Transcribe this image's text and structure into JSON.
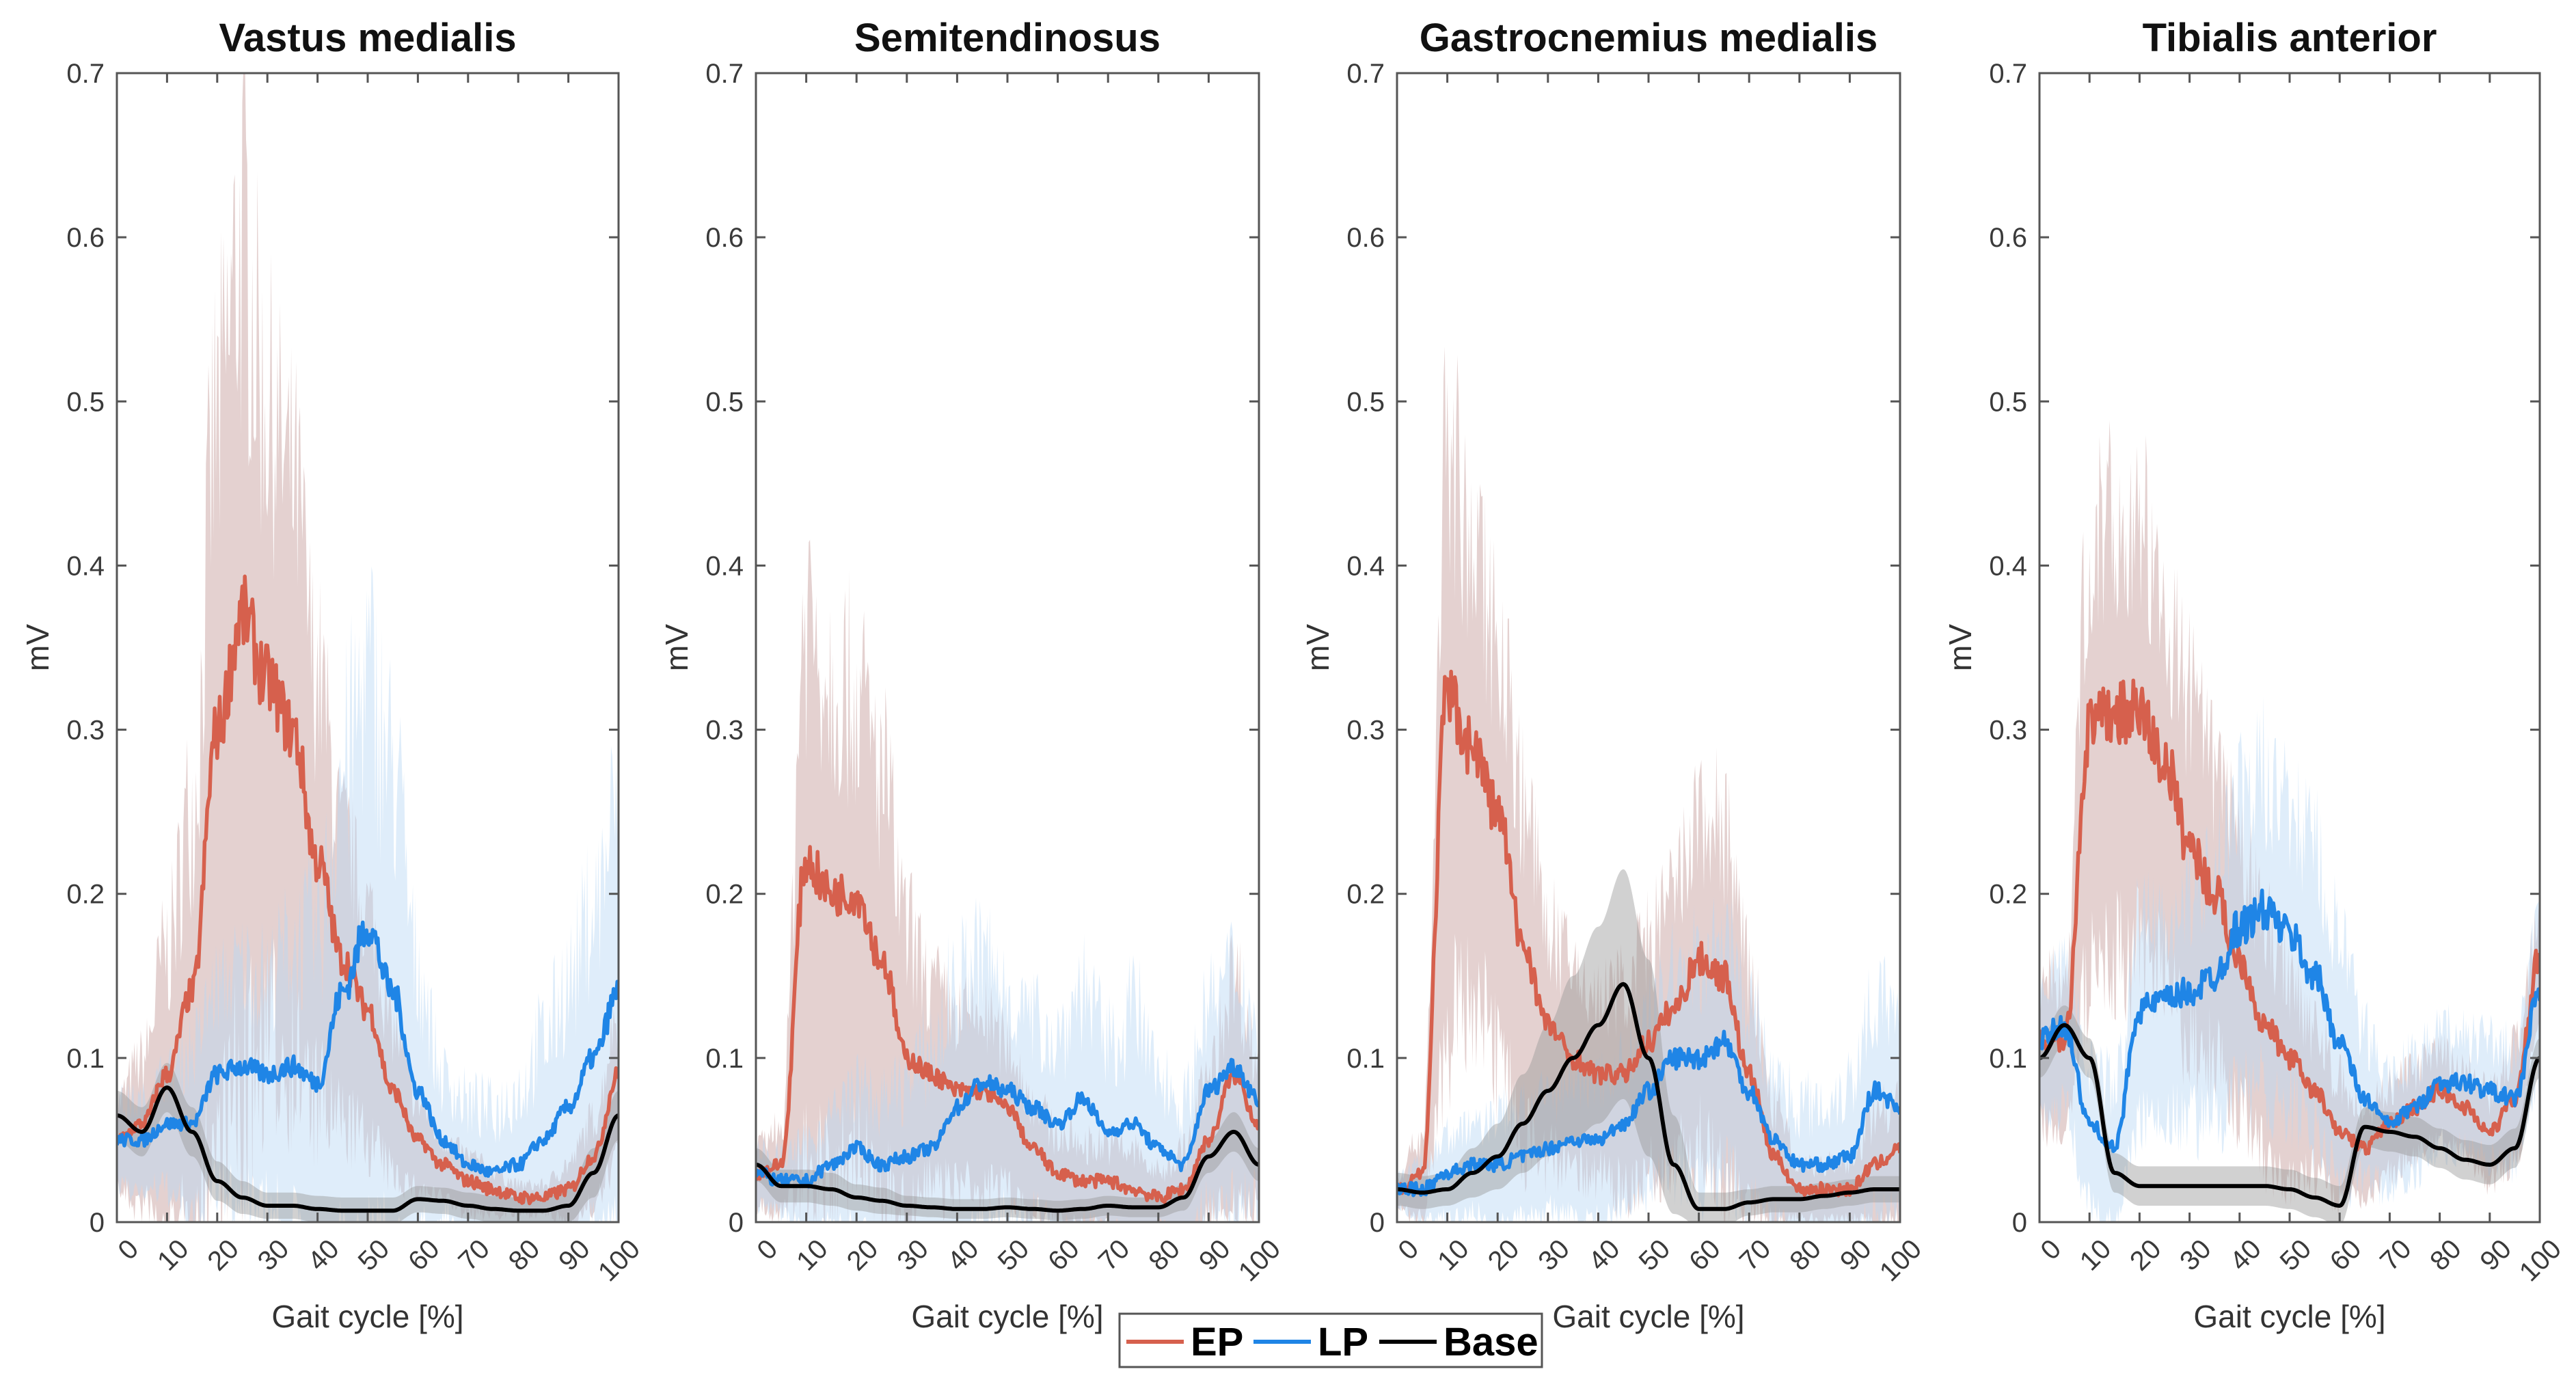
{
  "chart_data": [
    {
      "type": "line",
      "title": "Vastus medialis",
      "xlabel": "Gait cycle [%]",
      "ylabel": "mV",
      "xlim": [
        0,
        100
      ],
      "ylim": [
        0,
        0.7
      ],
      "xticks": [
        "0",
        "10",
        "20",
        "30",
        "40",
        "50",
        "60",
        "70",
        "80",
        "90",
        "100"
      ],
      "yticks": [
        "0",
        "0.1",
        "0.2",
        "0.3",
        "0.4",
        "0.5",
        "0.6",
        "0.7"
      ],
      "x": [
        0,
        5,
        10,
        15,
        20,
        25,
        30,
        35,
        40,
        45,
        50,
        55,
        60,
        65,
        70,
        75,
        80,
        85,
        90,
        95,
        100
      ],
      "series": [
        {
          "name": "EP",
          "mean": [
            0.05,
            0.06,
            0.09,
            0.14,
            0.3,
            0.37,
            0.33,
            0.3,
            0.22,
            0.16,
            0.13,
            0.08,
            0.05,
            0.035,
            0.025,
            0.02,
            0.015,
            0.015,
            0.02,
            0.04,
            0.09
          ],
          "sd": [
            0.03,
            0.05,
            0.1,
            0.15,
            0.25,
            0.3,
            0.22,
            0.2,
            0.15,
            0.1,
            0.08,
            0.05,
            0.03,
            0.02,
            0.02,
            0.015,
            0.01,
            0.01,
            0.02,
            0.03,
            0.05
          ]
        },
        {
          "name": "LP",
          "mean": [
            0.05,
            0.05,
            0.06,
            0.06,
            0.09,
            0.095,
            0.09,
            0.095,
            0.085,
            0.14,
            0.18,
            0.14,
            0.08,
            0.05,
            0.035,
            0.03,
            0.035,
            0.05,
            0.07,
            0.1,
            0.14
          ],
          "sd": [
            0.03,
            0.03,
            0.04,
            0.06,
            0.07,
            0.08,
            0.08,
            0.1,
            0.12,
            0.18,
            0.2,
            0.18,
            0.1,
            0.05,
            0.05,
            0.05,
            0.06,
            0.08,
            0.1,
            0.12,
            0.15
          ]
        },
        {
          "name": "Base",
          "mean": [
            0.065,
            0.055,
            0.082,
            0.055,
            0.025,
            0.015,
            0.01,
            0.01,
            0.008,
            0.007,
            0.007,
            0.007,
            0.014,
            0.013,
            0.01,
            0.008,
            0.007,
            0.007,
            0.01,
            0.03,
            0.065
          ],
          "sd": [
            0.015,
            0.015,
            0.015,
            0.015,
            0.012,
            0.01,
            0.008,
            0.008,
            0.008,
            0.008,
            0.008,
            0.008,
            0.008,
            0.008,
            0.008,
            0.008,
            0.008,
            0.008,
            0.01,
            0.015,
            0.015
          ]
        }
      ]
    },
    {
      "type": "line",
      "title": "Semitendinosus",
      "xlabel": "Gait cycle [%]",
      "ylabel": "mV",
      "xlim": [
        0,
        100
      ],
      "ylim": [
        0,
        0.7
      ],
      "xticks": [
        "0",
        "10",
        "20",
        "30",
        "40",
        "50",
        "60",
        "70",
        "80",
        "90",
        "100"
      ],
      "yticks": [
        "0",
        "0.1",
        "0.2",
        "0.3",
        "0.4",
        "0.5",
        "0.6",
        "0.7"
      ],
      "x": [
        0,
        5,
        10,
        15,
        20,
        25,
        30,
        35,
        40,
        45,
        50,
        55,
        60,
        65,
        70,
        75,
        80,
        85,
        90,
        95,
        100
      ],
      "series": [
        {
          "name": "EP",
          "mean": [
            0.03,
            0.035,
            0.22,
            0.2,
            0.2,
            0.16,
            0.1,
            0.09,
            0.08,
            0.08,
            0.07,
            0.045,
            0.03,
            0.025,
            0.025,
            0.02,
            0.015,
            0.02,
            0.05,
            0.09,
            0.06
          ],
          "sd": [
            0.02,
            0.03,
            0.2,
            0.18,
            0.16,
            0.15,
            0.1,
            0.07,
            0.06,
            0.06,
            0.05,
            0.04,
            0.03,
            0.03,
            0.03,
            0.03,
            0.02,
            0.03,
            0.05,
            0.08,
            0.05
          ]
        },
        {
          "name": "LP",
          "mean": [
            0.03,
            0.025,
            0.025,
            0.035,
            0.045,
            0.035,
            0.04,
            0.045,
            0.07,
            0.085,
            0.08,
            0.07,
            0.06,
            0.075,
            0.055,
            0.06,
            0.045,
            0.035,
            0.08,
            0.095,
            0.075
          ],
          "sd": [
            0.02,
            0.02,
            0.03,
            0.04,
            0.05,
            0.05,
            0.06,
            0.08,
            0.1,
            0.1,
            0.08,
            0.07,
            0.07,
            0.09,
            0.07,
            0.09,
            0.06,
            0.05,
            0.07,
            0.08,
            0.06
          ]
        },
        {
          "name": "Base",
          "mean": [
            0.035,
            0.022,
            0.022,
            0.02,
            0.015,
            0.013,
            0.01,
            0.009,
            0.008,
            0.008,
            0.009,
            0.008,
            0.007,
            0.008,
            0.01,
            0.009,
            0.009,
            0.015,
            0.04,
            0.055,
            0.035
          ],
          "sd": [
            0.01,
            0.01,
            0.01,
            0.01,
            0.008,
            0.008,
            0.006,
            0.006,
            0.006,
            0.006,
            0.006,
            0.006,
            0.006,
            0.006,
            0.006,
            0.006,
            0.006,
            0.008,
            0.01,
            0.012,
            0.01
          ]
        }
      ]
    },
    {
      "type": "line",
      "title": "Gastrocnemius medialis",
      "xlabel": "Gait cycle [%]",
      "ylabel": "mV",
      "xlim": [
        0,
        100
      ],
      "ylim": [
        0,
        0.7
      ],
      "xticks": [
        "0",
        "10",
        "20",
        "30",
        "40",
        "50",
        "60",
        "70",
        "80",
        "90",
        "100"
      ],
      "yticks": [
        "0",
        "0.1",
        "0.2",
        "0.3",
        "0.4",
        "0.5",
        "0.6",
        "0.7"
      ],
      "x": [
        0,
        5,
        10,
        15,
        20,
        25,
        30,
        35,
        40,
        45,
        50,
        55,
        60,
        65,
        70,
        75,
        80,
        85,
        90,
        95,
        100
      ],
      "series": [
        {
          "name": "EP",
          "mean": [
            0.02,
            0.03,
            0.32,
            0.29,
            0.25,
            0.17,
            0.12,
            0.1,
            0.09,
            0.09,
            0.11,
            0.13,
            0.16,
            0.15,
            0.09,
            0.04,
            0.02,
            0.02,
            0.02,
            0.035,
            0.045
          ],
          "sd": [
            0.01,
            0.03,
            0.2,
            0.15,
            0.15,
            0.12,
            0.08,
            0.07,
            0.06,
            0.07,
            0.08,
            0.09,
            0.11,
            0.12,
            0.08,
            0.04,
            0.02,
            0.02,
            0.02,
            0.04,
            0.05
          ]
        },
        {
          "name": "LP",
          "mean": [
            0.02,
            0.02,
            0.03,
            0.035,
            0.035,
            0.04,
            0.045,
            0.05,
            0.05,
            0.06,
            0.08,
            0.1,
            0.1,
            0.11,
            0.08,
            0.05,
            0.035,
            0.035,
            0.04,
            0.08,
            0.07
          ],
          "sd": [
            0.01,
            0.02,
            0.03,
            0.03,
            0.04,
            0.04,
            0.04,
            0.05,
            0.05,
            0.05,
            0.06,
            0.07,
            0.08,
            0.08,
            0.07,
            0.05,
            0.05,
            0.05,
            0.06,
            0.08,
            0.06
          ]
        },
        {
          "name": "Base",
          "mean": [
            0.02,
            0.018,
            0.02,
            0.03,
            0.04,
            0.06,
            0.08,
            0.1,
            0.12,
            0.145,
            0.1,
            0.035,
            0.008,
            0.008,
            0.012,
            0.014,
            0.014,
            0.016,
            0.018,
            0.02,
            0.02
          ],
          "sd": [
            0.01,
            0.01,
            0.01,
            0.015,
            0.02,
            0.03,
            0.04,
            0.05,
            0.06,
            0.07,
            0.06,
            0.03,
            0.01,
            0.01,
            0.008,
            0.008,
            0.008,
            0.008,
            0.008,
            0.008,
            0.008
          ]
        }
      ]
    },
    {
      "type": "line",
      "title": "Tibialis anterior",
      "xlabel": "Gait cycle [%]",
      "ylabel": "mV",
      "xlim": [
        0,
        100
      ],
      "ylim": [
        0,
        0.7
      ],
      "xticks": [
        "0",
        "10",
        "20",
        "30",
        "40",
        "50",
        "60",
        "70",
        "80",
        "90",
        "100"
      ],
      "yticks": [
        "0",
        "0.1",
        "0.2",
        "0.3",
        "0.4",
        "0.5",
        "0.6",
        "0.7"
      ],
      "x": [
        0,
        5,
        10,
        15,
        20,
        25,
        30,
        35,
        40,
        45,
        50,
        55,
        60,
        65,
        70,
        75,
        80,
        85,
        90,
        95,
        100
      ],
      "series": [
        {
          "name": "EP",
          "mean": [
            0.11,
            0.11,
            0.3,
            0.31,
            0.31,
            0.28,
            0.23,
            0.2,
            0.16,
            0.12,
            0.1,
            0.08,
            0.055,
            0.045,
            0.06,
            0.07,
            0.08,
            0.07,
            0.055,
            0.075,
            0.16
          ],
          "sd": [
            0.05,
            0.05,
            0.15,
            0.15,
            0.15,
            0.12,
            0.12,
            0.1,
            0.09,
            0.08,
            0.07,
            0.05,
            0.04,
            0.03,
            0.03,
            0.03,
            0.03,
            0.03,
            0.03,
            0.04,
            0.04
          ]
        },
        {
          "name": "LP",
          "mean": [
            0.11,
            0.12,
            0.06,
            0.045,
            0.13,
            0.135,
            0.14,
            0.15,
            0.18,
            0.19,
            0.175,
            0.15,
            0.11,
            0.075,
            0.06,
            0.07,
            0.085,
            0.085,
            0.08,
            0.075,
            0.14
          ],
          "sd": [
            0.05,
            0.05,
            0.05,
            0.05,
            0.07,
            0.07,
            0.08,
            0.09,
            0.1,
            0.11,
            0.1,
            0.1,
            0.08,
            0.05,
            0.04,
            0.04,
            0.04,
            0.04,
            0.04,
            0.04,
            0.05
          ]
        },
        {
          "name": "Base",
          "mean": [
            0.1,
            0.12,
            0.1,
            0.03,
            0.022,
            0.022,
            0.022,
            0.022,
            0.022,
            0.022,
            0.02,
            0.015,
            0.01,
            0.058,
            0.055,
            0.052,
            0.045,
            0.038,
            0.035,
            0.045,
            0.1
          ],
          "sd": [
            0.012,
            0.012,
            0.012,
            0.012,
            0.012,
            0.012,
            0.012,
            0.012,
            0.012,
            0.012,
            0.012,
            0.012,
            0.012,
            0.012,
            0.012,
            0.012,
            0.012,
            0.012,
            0.012,
            0.012,
            0.012
          ]
        }
      ]
    }
  ],
  "legend": {
    "position": "bottom-center",
    "entries": [
      {
        "label": "EP",
        "color": "#d6604d"
      },
      {
        "label": "LP",
        "color": "#1f85e6"
      },
      {
        "label": "Base",
        "color": "#000000"
      }
    ]
  },
  "colors": {
    "EP": "#d6604d",
    "EP_band": "#c49a96",
    "LP": "#1f85e6",
    "LP_band": "#b9d7f3",
    "Base": "#000000",
    "Base_band": "#9a9a9a"
  }
}
